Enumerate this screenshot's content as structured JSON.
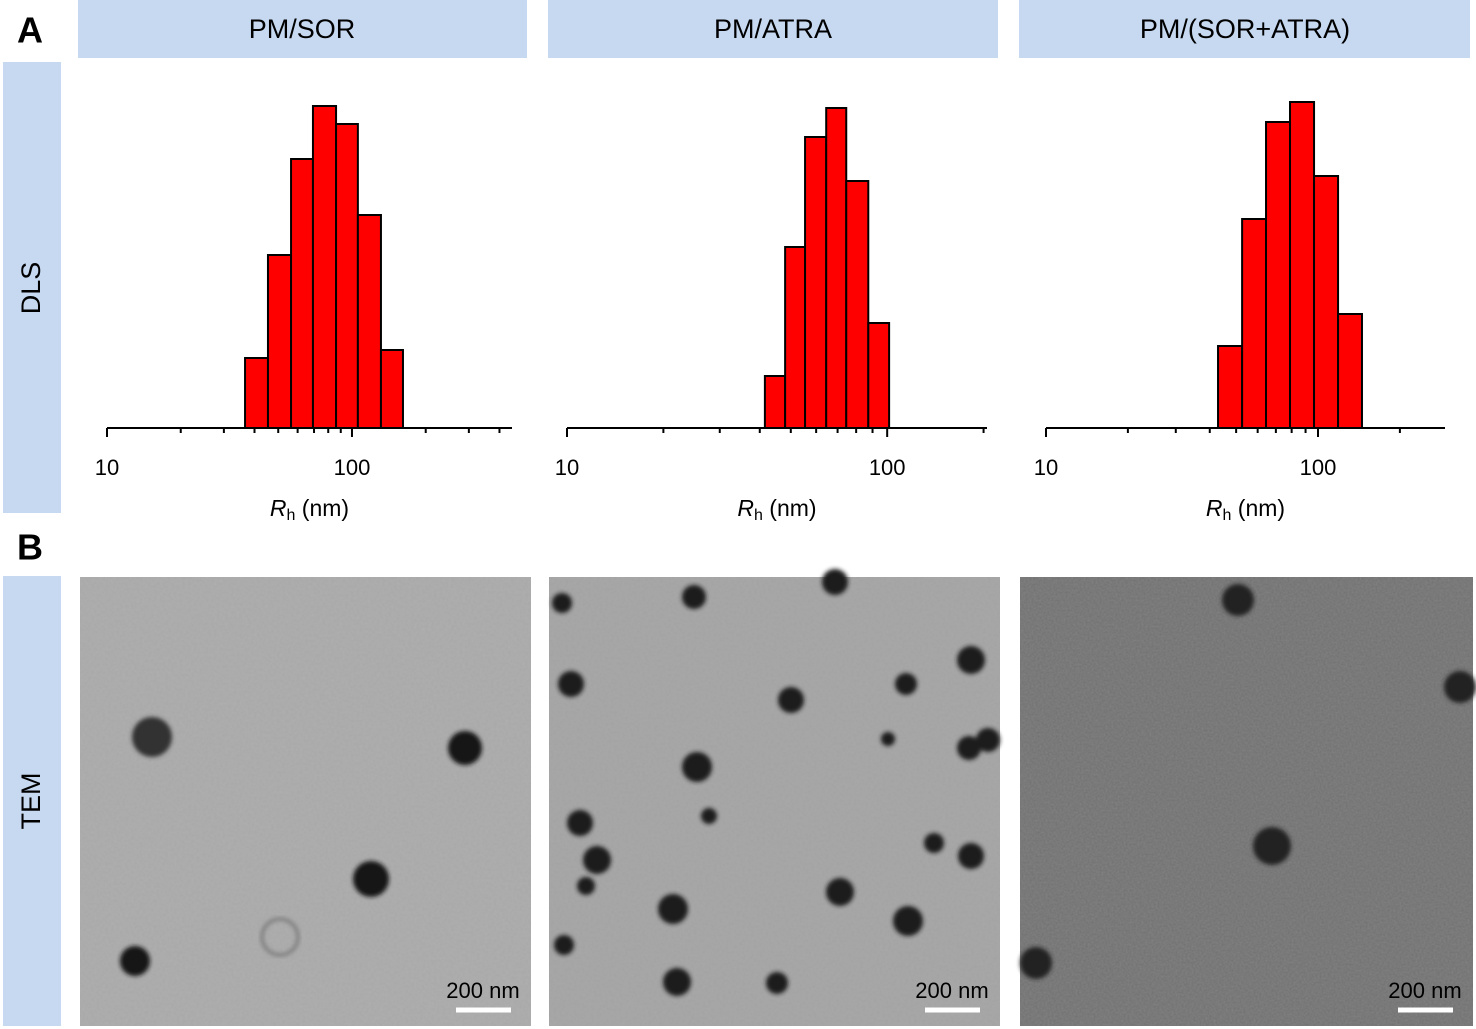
{
  "panel_labels": {
    "a": "A",
    "b": "B"
  },
  "row_labels": {
    "dls": "DLS",
    "tem": "TEM"
  },
  "column_titles": [
    "PM/SOR",
    "PM/ATRA",
    "PM/(SOR+ATRA)"
  ],
  "scale_bars": [
    "200 nm",
    "200 nm",
    "200 nm"
  ],
  "chart_data": [
    {
      "type": "histogram",
      "log_x": true,
      "color": "#ff0000",
      "xlabel": {
        "symbol": "R",
        "subscript": "h",
        "unit": "(nm)"
      },
      "bins": [
        36.6,
        45.4,
        56.4,
        69.3,
        86.1,
        105.7,
        131.3,
        161.5
      ],
      "values": [
        7.0,
        17.3,
        26.9,
        32.2,
        30.4,
        21.3,
        7.8
      ],
      "xlim": [
        10,
        450
      ],
      "xticks": [
        10,
        100
      ],
      "xticks_minor": [
        20,
        30,
        40,
        50,
        60,
        70,
        80,
        90,
        200,
        300,
        400
      ],
      "ylim": [
        0,
        35
      ]
    },
    {
      "type": "histogram",
      "log_x": true,
      "color": "#ff0000",
      "xlabel": {
        "symbol": "R",
        "subscript": "h",
        "unit": "(nm)"
      },
      "bins": [
        41.5,
        48.0,
        55.4,
        64.5,
        74.5,
        87.3,
        101.4
      ],
      "values": [
        5.2,
        18.1,
        29.1,
        32.0,
        24.7,
        10.5
      ],
      "xlim": [
        10,
        205
      ],
      "xticks": [
        10,
        100
      ],
      "xticks_minor": [
        20,
        30,
        40,
        50,
        60,
        70,
        80,
        90,
        200
      ],
      "ylim": [
        0,
        35
      ]
    },
    {
      "type": "histogram",
      "log_x": true,
      "color": "#ff0000",
      "xlabel": {
        "symbol": "R",
        "subscript": "h",
        "unit": "(nm)"
      },
      "bins": [
        42.9,
        52.6,
        64.4,
        78.9,
        96.7,
        118.5,
        145.1
      ],
      "values": [
        8.2,
        20.9,
        30.6,
        32.6,
        25.2,
        11.4
      ],
      "xlim": [
        10,
        293
      ],
      "xticks": [
        10,
        100
      ],
      "xticks_minor": [
        20,
        30,
        40,
        50,
        60,
        70,
        80,
        90,
        200
      ],
      "ylim": [
        0,
        35
      ]
    }
  ]
}
